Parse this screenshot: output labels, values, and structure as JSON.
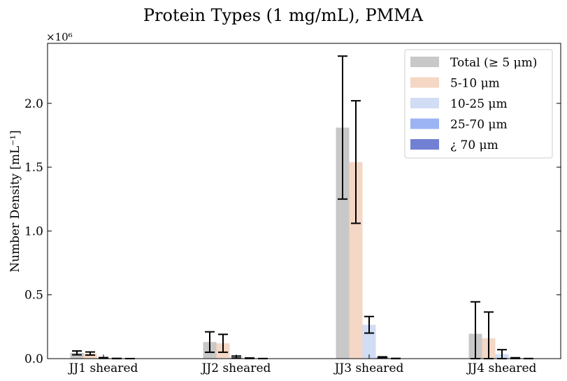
{
  "chart_data": {
    "type": "bar",
    "title": "Protein Types (1 mg/mL), PMMA",
    "xlabel": "",
    "ylabel": "Number Density [mL⁻¹]",
    "y_multiplier": "×10⁶",
    "ylim": [
      0,
      2470000
    ],
    "yticks": [
      0,
      500000,
      1000000,
      1500000,
      2000000
    ],
    "ytick_labels": [
      "0.0",
      "0.5",
      "1.0",
      "1.5",
      "2.0"
    ],
    "categories": [
      "JJ1 sheared",
      "JJ2 sheared",
      "JJ3 sheared",
      "JJ4 sheared"
    ],
    "legend_position": "top-right",
    "grid": false,
    "series": [
      {
        "name": "Total (≥ 5 μm)",
        "color": "#c8c8c8",
        "values": [
          45000,
          130000,
          1810000,
          195000
        ],
        "errors": [
          15000,
          80000,
          560000,
          250000
        ]
      },
      {
        "name": "5-10 μm",
        "color": "#f5d7c6",
        "values": [
          40000,
          120000,
          1540000,
          160000
        ],
        "errors": [
          12000,
          70000,
          480000,
          205000
        ]
      },
      {
        "name": "10-25 μm",
        "color": "#d0ddf4",
        "values": [
          5000,
          12000,
          265000,
          35000
        ],
        "errors": [
          3000,
          8000,
          65000,
          35000
        ]
      },
      {
        "name": "25-70 μm",
        "color": "#9cb4f4",
        "values": [
          1000,
          3000,
          10000,
          4000
        ],
        "errors": [
          800,
          2000,
          4000,
          3000
        ]
      },
      {
        "name": "¿ 70 μm",
        "color": "#7280d4",
        "values": [
          200,
          500,
          1000,
          500
        ],
        "errors": [
          200,
          400,
          800,
          400
        ]
      }
    ]
  }
}
